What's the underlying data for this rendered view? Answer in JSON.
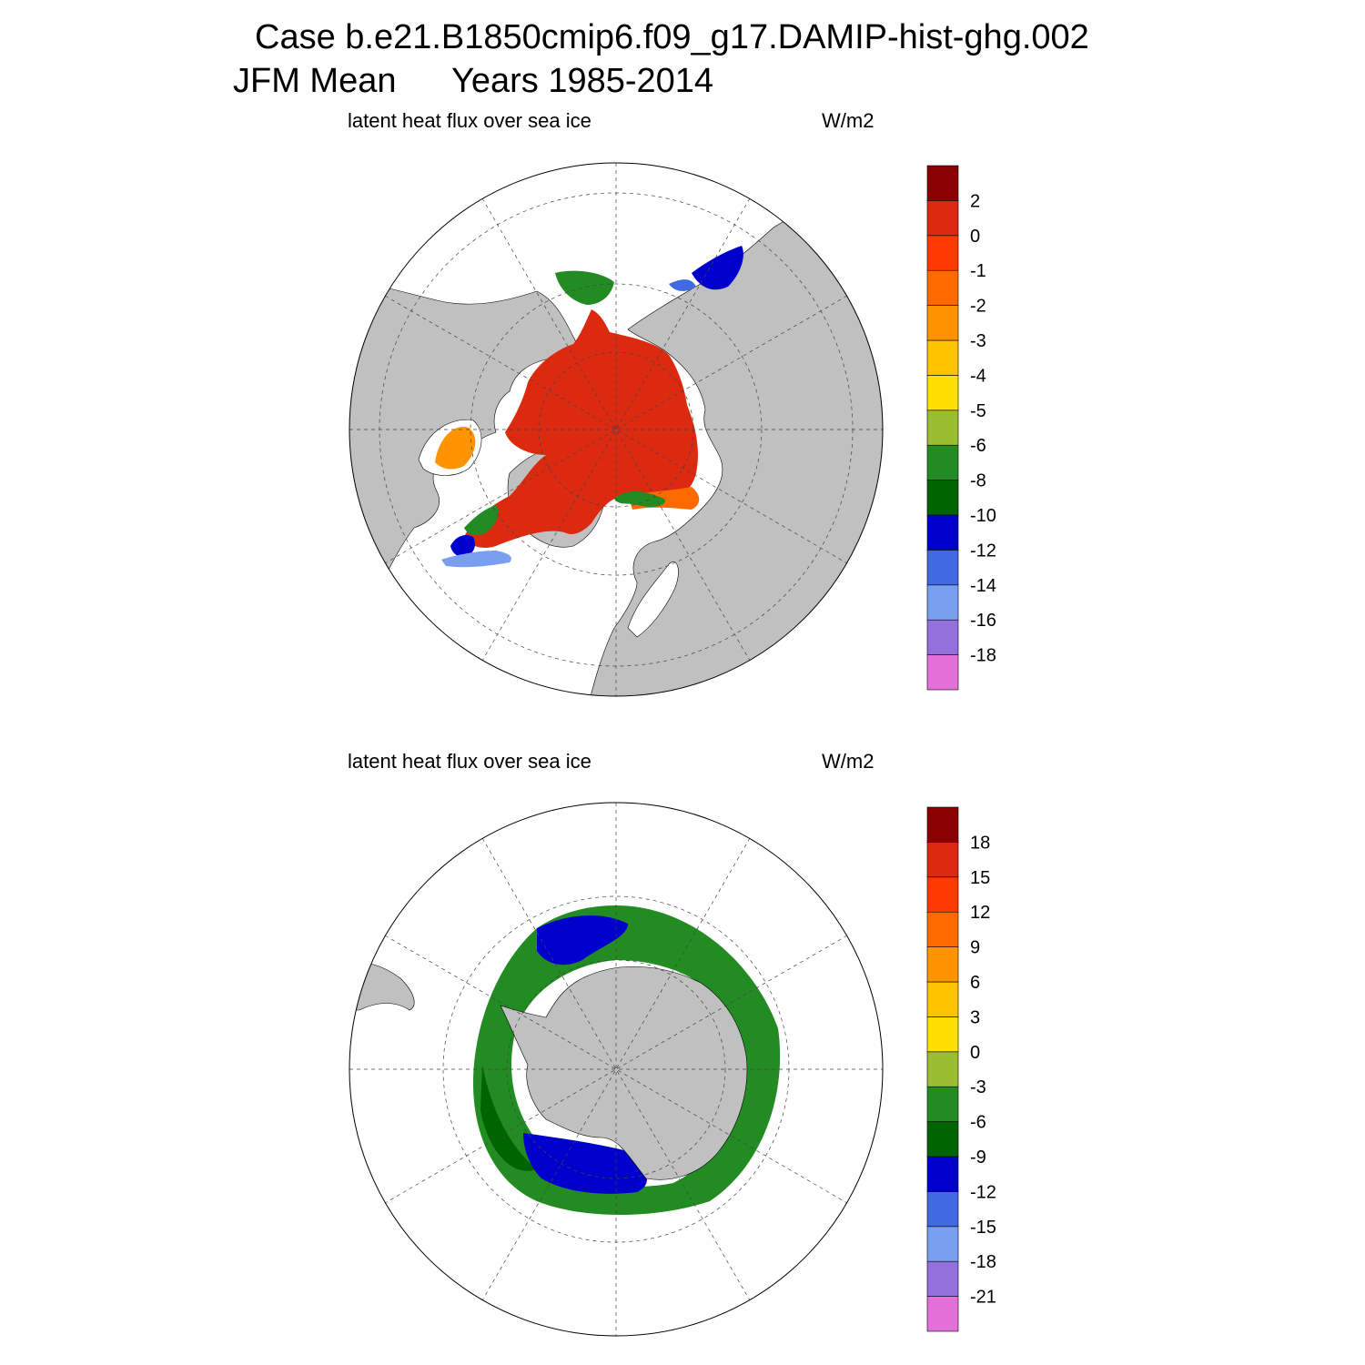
{
  "header": {
    "case_line": "Case b.e21.B1850cmip6.f09_g17.DAMIP-hist-ghg.002",
    "season": "JFM Mean",
    "years": "Years 1985-2014"
  },
  "panels": [
    {
      "hemisphere": "north",
      "variable_label": "latent heat flux over sea ice",
      "units": "W/m2",
      "colorbar": {
        "colors": [
          "#e36fd8",
          "#9370db",
          "#7a9ef0",
          "#4169e1",
          "#0000cd",
          "#006400",
          "#228b22",
          "#9abd32",
          "#ffe000",
          "#ffc300",
          "#ff9400",
          "#ff6a00",
          "#ff3a00",
          "#dc2a10",
          "#8b0000"
        ],
        "labels": [
          "-18",
          "-16",
          "-14",
          "-12",
          "-10",
          "-8",
          "-6",
          "-5",
          "-4",
          "-3",
          "-2",
          "-1",
          "0",
          "2"
        ]
      }
    },
    {
      "hemisphere": "south",
      "variable_label": "latent heat flux over sea ice",
      "units": "W/m2",
      "colorbar": {
        "colors": [
          "#e36fd8",
          "#9370db",
          "#7a9ef0",
          "#4169e1",
          "#0000cd",
          "#006400",
          "#228b22",
          "#9abd32",
          "#ffe000",
          "#ffc300",
          "#ff9400",
          "#ff6a00",
          "#ff3a00",
          "#dc2a10",
          "#8b0000"
        ],
        "labels": [
          "-21",
          "-18",
          "-15",
          "-12",
          "-9",
          "-6",
          "-3",
          "0",
          "3",
          "6",
          "9",
          "12",
          "15",
          "18"
        ]
      }
    }
  ]
}
